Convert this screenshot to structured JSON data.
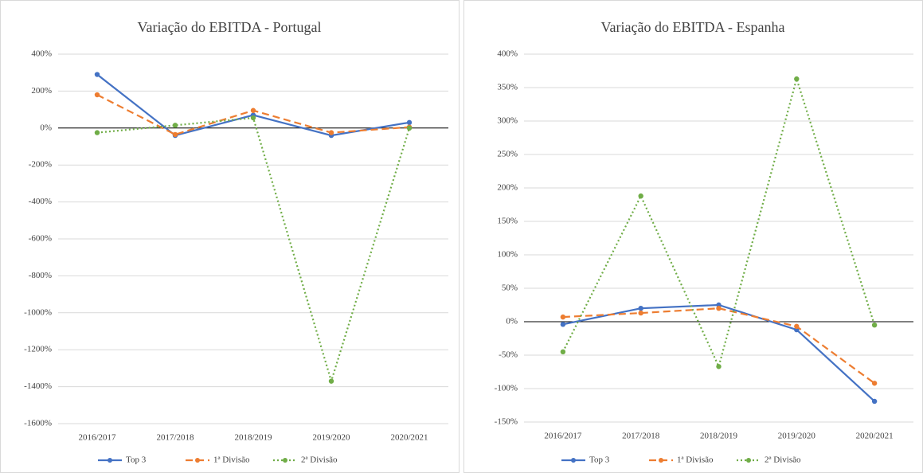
{
  "chart_data": [
    {
      "type": "line",
      "title": "Variação do EBITDA - Portugal",
      "categories": [
        "2016/2017",
        "2017/2018",
        "2018/2019",
        "2019/2020",
        "2020/2021"
      ],
      "series": [
        {
          "name": "Top 3",
          "color": "#4472c4",
          "dash": "solid",
          "values": [
            290,
            -40,
            70,
            -40,
            30
          ]
        },
        {
          "name": "1ª Divisão",
          "color": "#ed7d31",
          "dash": "dashed",
          "values": [
            180,
            -35,
            95,
            -25,
            5
          ]
        },
        {
          "name": "2ª Divisão",
          "color": "#70ad47",
          "dash": "dotted",
          "values": [
            -25,
            15,
            55,
            -1370,
            0
          ]
        }
      ],
      "ylim": [
        -1600,
        400
      ],
      "yticks": [
        {
          "value": -1600,
          "label": "-1600%"
        },
        {
          "value": -1400,
          "label": "-1400%"
        },
        {
          "value": -1200,
          "label": "-1200%"
        },
        {
          "value": -1000,
          "label": "-1000%"
        },
        {
          "value": -800,
          "label": "-800%"
        },
        {
          "value": -600,
          "label": "-600%"
        },
        {
          "value": -400,
          "label": "-400%"
        },
        {
          "value": -200,
          "label": "-200%"
        },
        {
          "value": 0,
          "label": "0%"
        },
        {
          "value": 200,
          "label": "200%"
        },
        {
          "value": 400,
          "label": "400%"
        }
      ],
      "grid": true,
      "legend": "bottom"
    },
    {
      "type": "line",
      "title": "Variação do EBITDA - Espanha",
      "categories": [
        "2016/2017",
        "2017/2018",
        "2018/2019",
        "2019/2020",
        "2020/2021"
      ],
      "series": [
        {
          "name": "Top 3",
          "color": "#4472c4",
          "dash": "solid",
          "values": [
            -4,
            20,
            25,
            -12,
            -119
          ]
        },
        {
          "name": "1ª Divisão",
          "color": "#ed7d31",
          "dash": "dashed",
          "values": [
            7,
            13,
            20,
            -7,
            -92
          ]
        },
        {
          "name": "2ª Divisão",
          "color": "#70ad47",
          "dash": "dotted",
          "values": [
            -45,
            188,
            -67,
            363,
            -5
          ]
        }
      ],
      "ylim": [
        -150,
        400
      ],
      "yticks": [
        {
          "value": -150,
          "label": "-150%"
        },
        {
          "value": -100,
          "label": "-100%"
        },
        {
          "value": -50,
          "label": "-50%"
        },
        {
          "value": 0,
          "label": "0%"
        },
        {
          "value": 50,
          "label": "50%"
        },
        {
          "value": 100,
          "label": "100%"
        },
        {
          "value": 150,
          "label": "150%"
        },
        {
          "value": 200,
          "label": "200%"
        },
        {
          "value": 250,
          "label": "250%"
        },
        {
          "value": 300,
          "label": "300%"
        },
        {
          "value": 350,
          "label": "350%"
        },
        {
          "value": 400,
          "label": "400%"
        }
      ],
      "grid": true,
      "legend": "bottom"
    }
  ]
}
